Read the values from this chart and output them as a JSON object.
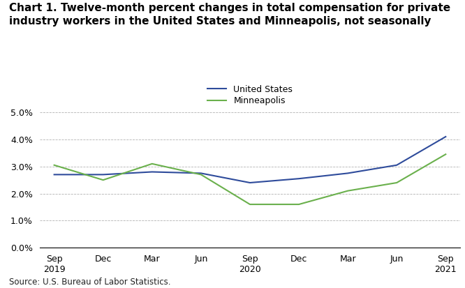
{
  "title_line1": "Chart 1. Twelve-month percent changes in total compensation for private",
  "title_line2": "industry workers in the United States and Minneapolis, not seasonally",
  "source": "Source: U.S. Bureau of Labor Statistics.",
  "x_labels": [
    "Sep\n2019",
    "Dec",
    "Mar",
    "Jun",
    "Sep\n2020",
    "Dec",
    "Mar",
    "Jun",
    "Sep\n2021"
  ],
  "us_values": [
    2.7,
    2.7,
    2.8,
    2.75,
    2.4,
    2.55,
    2.75,
    3.05,
    4.1
  ],
  "mpls_values": [
    3.05,
    2.5,
    3.1,
    2.7,
    1.6,
    1.6,
    2.1,
    2.4,
    3.45
  ],
  "us_color": "#2E4B9B",
  "mpls_color": "#6AB04C",
  "ylim": [
    0.0,
    5.0
  ],
  "yticks": [
    0.0,
    1.0,
    2.0,
    3.0,
    4.0,
    5.0
  ],
  "legend_labels": [
    "United States",
    "Minneapolis"
  ],
  "title_fontsize": 11,
  "axis_fontsize": 9,
  "source_fontsize": 8.5
}
